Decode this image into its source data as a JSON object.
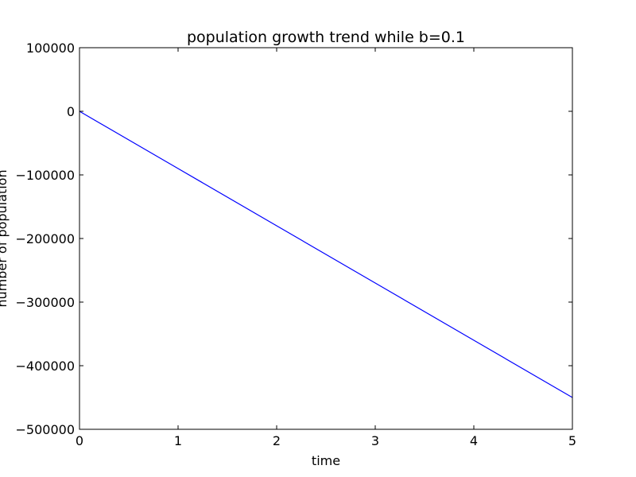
{
  "chart_data": {
    "type": "line",
    "title": "population growth trend while b=0.1",
    "xlabel": "time",
    "ylabel": "number of population",
    "xlim": [
      0,
      5
    ],
    "ylim": [
      -500000,
      100000
    ],
    "xticks": [
      0,
      1,
      2,
      3,
      4,
      5
    ],
    "yticks": [
      100000,
      0,
      -100000,
      -200000,
      -300000,
      -400000,
      -500000
    ],
    "xtick_labels": [
      "0",
      "1",
      "2",
      "3",
      "4",
      "5"
    ],
    "ytick_labels": [
      "100000",
      "0",
      "−100000",
      "−200000",
      "−300000",
      "−400000",
      "−500000"
    ],
    "grid": false,
    "series": [
      {
        "color": "#0000ff",
        "x": [
          0,
          1,
          2,
          3,
          4,
          5
        ],
        "y": [
          0,
          -90000,
          -180000,
          -270000,
          -360000,
          -450000
        ]
      }
    ]
  }
}
